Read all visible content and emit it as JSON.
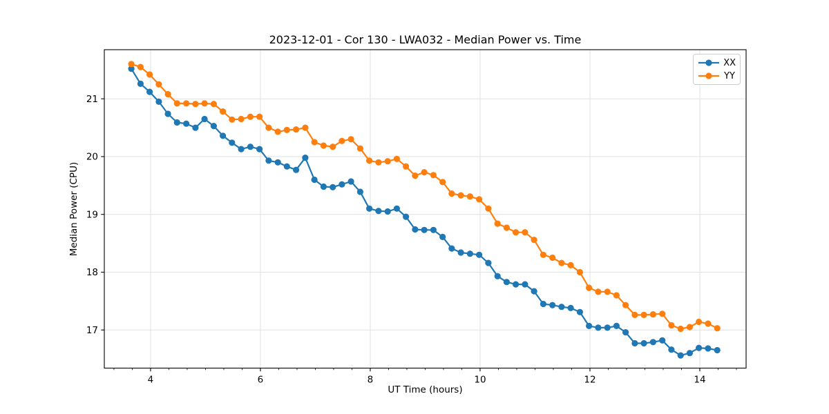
{
  "chart_data": {
    "type": "line",
    "title": "2023-12-01 - Cor 130 - LWA032 - Median Power vs. Time",
    "xlabel": "UT Time (hours)",
    "ylabel": "Median Power (CPU)",
    "xlim": [
      3.158,
      14.843
    ],
    "ylim": [
      16.34,
      21.85
    ],
    "xticks": [
      4,
      6,
      8,
      10,
      12,
      14
    ],
    "yticks": [
      17,
      18,
      19,
      20,
      21
    ],
    "x_minor_tick_interval": 0.3333,
    "grid": "major-both",
    "grid_color": "#e0e0e0",
    "axes_color": "#000000",
    "background_color": "#ffffff",
    "legend_position": "upper right",
    "x": [
      3.65,
      3.817,
      3.983,
      4.15,
      4.317,
      4.483,
      4.65,
      4.817,
      4.983,
      5.15,
      5.317,
      5.483,
      5.65,
      5.817,
      5.983,
      6.15,
      6.317,
      6.483,
      6.65,
      6.817,
      6.983,
      7.15,
      7.317,
      7.483,
      7.65,
      7.817,
      7.983,
      8.15,
      8.317,
      8.483,
      8.65,
      8.817,
      8.983,
      9.15,
      9.317,
      9.483,
      9.65,
      9.817,
      9.983,
      10.15,
      10.317,
      10.483,
      10.65,
      10.817,
      10.983,
      11.15,
      11.317,
      11.483,
      11.65,
      11.817,
      11.983,
      12.15,
      12.317,
      12.483,
      12.65,
      12.817,
      12.983,
      13.15,
      13.317,
      13.483,
      13.65,
      13.817,
      13.983,
      14.15,
      14.317
    ],
    "series": [
      {
        "name": "XX",
        "color": "#1f77b4",
        "values": [
          21.52,
          21.26,
          21.12,
          20.95,
          20.74,
          20.59,
          20.57,
          20.5,
          20.65,
          20.53,
          20.36,
          20.24,
          20.13,
          20.17,
          20.13,
          19.93,
          19.9,
          19.83,
          19.77,
          19.98,
          19.6,
          19.48,
          19.47,
          19.52,
          19.57,
          19.39,
          19.1,
          19.06,
          19.05,
          19.1,
          18.96,
          18.74,
          18.73,
          18.73,
          18.61,
          18.41,
          18.34,
          18.32,
          18.3,
          18.16,
          17.93,
          17.83,
          17.79,
          17.79,
          17.67,
          17.45,
          17.43,
          17.4,
          17.38,
          17.31,
          17.07,
          17.04,
          17.04,
          17.07,
          16.96,
          16.77,
          16.77,
          16.79,
          16.82,
          16.66,
          16.56,
          16.6,
          16.69,
          16.68,
          16.65
        ]
      },
      {
        "name": "YY",
        "color": "#ff7f0e",
        "values": [
          21.6,
          21.55,
          21.42,
          21.25,
          21.08,
          20.92,
          20.92,
          20.91,
          20.92,
          20.91,
          20.78,
          20.64,
          20.65,
          20.69,
          20.69,
          20.5,
          20.43,
          20.46,
          20.47,
          20.5,
          20.25,
          20.19,
          20.17,
          20.27,
          20.3,
          20.14,
          19.93,
          19.9,
          19.92,
          19.96,
          19.83,
          19.67,
          19.73,
          19.68,
          19.56,
          19.36,
          19.33,
          19.31,
          19.26,
          19.1,
          18.84,
          18.77,
          18.69,
          18.69,
          18.56,
          18.3,
          18.25,
          18.16,
          18.12,
          18.0,
          17.73,
          17.66,
          17.66,
          17.6,
          17.43,
          17.26,
          17.26,
          17.27,
          17.28,
          17.08,
          17.02,
          17.05,
          17.14,
          17.11,
          17.03
        ]
      }
    ]
  }
}
